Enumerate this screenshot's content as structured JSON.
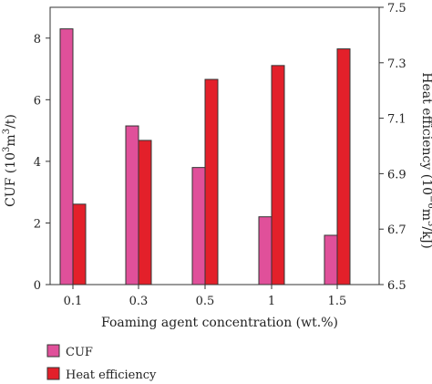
{
  "chart_data": {
    "type": "bar",
    "categories": [
      "0.1",
      "0.3",
      "0.5",
      "1",
      "1.5"
    ],
    "xlabel": "Foaming agent concentration (wt.%)",
    "series": [
      {
        "name": "CUF",
        "axis": "left",
        "color": "#e0509a",
        "values": [
          8.3,
          5.15,
          3.8,
          2.2,
          1.6
        ]
      },
      {
        "name": "Heat efficiency",
        "axis": "right",
        "color": "#e3202a",
        "values": [
          6.79,
          7.02,
          7.24,
          7.29,
          7.35
        ]
      }
    ],
    "y_left": {
      "label_main": "CUF (10",
      "label_sup": "3",
      "label_mid": "m",
      "label_sup2": "3",
      "label_end": "/t)",
      "ylim": [
        0,
        9
      ],
      "ticks": [
        "0",
        "2",
        "4",
        "6",
        "8"
      ]
    },
    "y_right": {
      "label_main": "Heat efficiency (10",
      "label_sup": "−6",
      "label_mid": "m",
      "label_sup2": "3",
      "label_end": "/kJ)",
      "ylim": [
        6.5,
        7.5
      ],
      "ticks": [
        "6.5",
        "6.7",
        "6.9",
        "7.1",
        "7.3",
        "7.5"
      ]
    },
    "grid": false,
    "legend_position": "bottom-left"
  }
}
